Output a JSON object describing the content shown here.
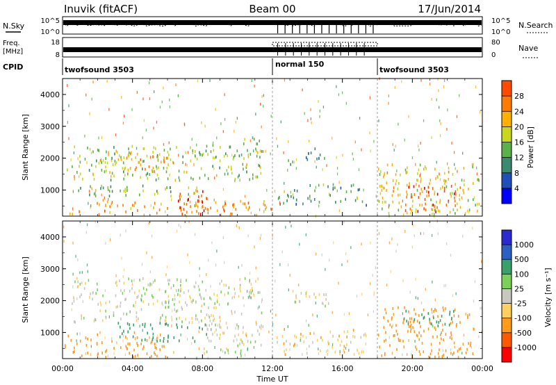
{
  "header": {
    "station": "Inuvik (fitACF)",
    "beam": "Beam 00",
    "date": "17/Jun/2014"
  },
  "panel_labels": {
    "nsky": "N.Sky",
    "nsearch": "N.Search",
    "freq_line1": "Freq.",
    "freq_line2": "[MHz]",
    "nave": "Nave",
    "cpid": "CPID"
  },
  "noise_axis": {
    "left": [
      "10^5",
      "10^0"
    ],
    "right": [
      "10^5",
      "10^0"
    ]
  },
  "freq_axis": {
    "left": [
      "18",
      "8"
    ],
    "right": [
      "80",
      "0"
    ]
  },
  "cpid_segments": [
    {
      "name": "twofsound 3503",
      "start_hour": 0,
      "end_hour": 12.0
    },
    {
      "name": "normal 150",
      "start_hour": 12.0,
      "end_hour": 18.0
    },
    {
      "name": "twofsound 3503",
      "start_hour": 18.0,
      "end_hour": 24
    }
  ],
  "colors": {
    "power": [
      "#0000ff",
      "#1f4fb8",
      "#3a8a6f",
      "#5ab04a",
      "#c8d61e",
      "#ffb000",
      "#ff7a00",
      "#ff4a00",
      "#e00000"
    ],
    "velocity": [
      "#ff0000",
      "#ff5a00",
      "#ff9a1a",
      "#ffd060",
      "#c8c8c0",
      "#7ad05a",
      "#3aa06a",
      "#2c60c0",
      "#2a2ad0"
    ]
  },
  "power_bar": {
    "title": "Power [dB]",
    "ticks": [
      "4",
      "8",
      "12",
      "16",
      "20",
      "24",
      "28"
    ]
  },
  "velocity_bar": {
    "title": "Velocity [m s⁻¹]",
    "ticks": [
      "-1000",
      "-500",
      "-100",
      "-25",
      "25",
      "100",
      "500",
      "1000"
    ]
  },
  "chart_data": [
    {
      "type": "heatmap",
      "title": "",
      "xlabel": "Time UT",
      "ylabel": "Slant Range [km]",
      "xlim": [
        0,
        24
      ],
      "ylim": [
        180,
        4500
      ],
      "x_ticks": [
        "00:00",
        "04:00",
        "08:00",
        "12:00",
        "16:00",
        "20:00",
        "00:00"
      ],
      "y_ticks": [
        "1000",
        "2000",
        "3000",
        "4000"
      ],
      "color_quantity": "Power [dB]",
      "regions": [
        {
          "t0": 0,
          "t1": 12,
          "r0": 200,
          "r1": 650,
          "value": 24
        },
        {
          "t0": 6.5,
          "t1": 8.5,
          "r0": 200,
          "r1": 1000,
          "value": 30
        },
        {
          "t0": 0.5,
          "t1": 8,
          "r0": 800,
          "r1": 1200,
          "value": 14
        },
        {
          "t0": 0.5,
          "t1": 11.5,
          "r0": 1300,
          "r1": 2400,
          "value": 16
        },
        {
          "t0": 2,
          "t1": 6,
          "r0": 1500,
          "r1": 2200,
          "value": 22
        },
        {
          "t0": 10.3,
          "t1": 11.3,
          "r0": 2300,
          "r1": 2800,
          "value": 12
        },
        {
          "t0": 12.2,
          "t1": 17.5,
          "r0": 500,
          "r1": 1200,
          "value": 12
        },
        {
          "t0": 12.8,
          "t1": 15,
          "r0": 1800,
          "r1": 2300,
          "value": 10
        },
        {
          "t0": 18,
          "t1": 23.8,
          "r0": 200,
          "r1": 1800,
          "value": 20
        },
        {
          "t0": 19.5,
          "t1": 22.5,
          "r0": 300,
          "r1": 1200,
          "value": 28
        }
      ]
    },
    {
      "type": "heatmap",
      "title": "",
      "xlabel": "Time UT",
      "ylabel": "Slant Range [km]",
      "xlim": [
        0,
        24
      ],
      "ylim": [
        180,
        4500
      ],
      "x_ticks": [
        "00:00",
        "04:00",
        "08:00",
        "12:00",
        "16:00",
        "20:00",
        "00:00"
      ],
      "y_ticks": [
        "1000",
        "2000",
        "3000",
        "4000"
      ],
      "color_quantity": "Velocity [m s⁻¹]",
      "regions": [
        {
          "t0": 0,
          "t1": 6,
          "r0": 200,
          "r1": 1000,
          "value": -150
        },
        {
          "t0": 0.5,
          "t1": 11.5,
          "r0": 1300,
          "r1": 2700,
          "value": 0
        },
        {
          "t0": 3,
          "t1": 8.5,
          "r0": 700,
          "r1": 1300,
          "value": 200
        },
        {
          "t0": 8,
          "t1": 11.5,
          "r0": 200,
          "r1": 1300,
          "value": 0
        },
        {
          "t0": 12.2,
          "t1": 17.5,
          "r0": 300,
          "r1": 1100,
          "value": -60
        },
        {
          "t0": 13,
          "t1": 15.5,
          "r0": 1800,
          "r1": 2300,
          "value": 0
        },
        {
          "t0": 18,
          "t1": 23.5,
          "r0": 200,
          "r1": 1800,
          "value": -300
        },
        {
          "t0": 19.5,
          "t1": 22.5,
          "r0": 1200,
          "r1": 1700,
          "value": 150
        }
      ]
    }
  ]
}
